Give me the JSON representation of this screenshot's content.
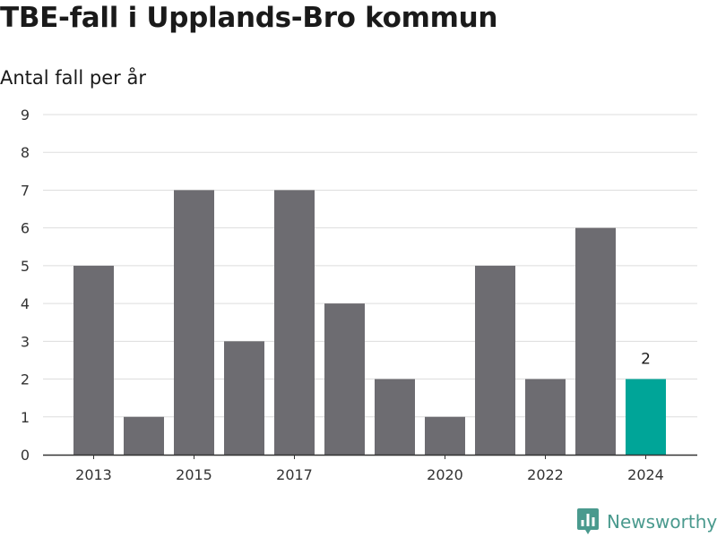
{
  "brand": {
    "name": "Newsworthy"
  },
  "colors": {
    "bar": "#6d6c71",
    "highlight": "#00a598",
    "grid": "#dddddd",
    "axis": "#333333",
    "brand": "#4a9a8e"
  },
  "chart_data": {
    "type": "bar",
    "title": "TBE-fall i Upplands-Bro kommun",
    "subtitle": "Antal fall per år",
    "xlabel": "",
    "ylabel": "",
    "categories": [
      "2013",
      "2014",
      "2015",
      "2016",
      "2017",
      "2018",
      "2019",
      "2020",
      "2021",
      "2022",
      "2023",
      "2024"
    ],
    "values": [
      5,
      1,
      7,
      3,
      7,
      4,
      2,
      1,
      5,
      2,
      6,
      2
    ],
    "x_tick_labels": [
      "2013",
      "",
      "2015",
      "",
      "2017",
      "",
      "",
      "2020",
      "",
      "2022",
      "",
      "2024"
    ],
    "highlight_category": "2024",
    "data_labels": [
      {
        "category": "2024",
        "text": "2"
      }
    ],
    "ylim": [
      0,
      9
    ],
    "yticks": [
      0,
      1,
      2,
      3,
      4,
      5,
      6,
      7,
      8,
      9
    ],
    "grid": true,
    "legend": "none"
  }
}
